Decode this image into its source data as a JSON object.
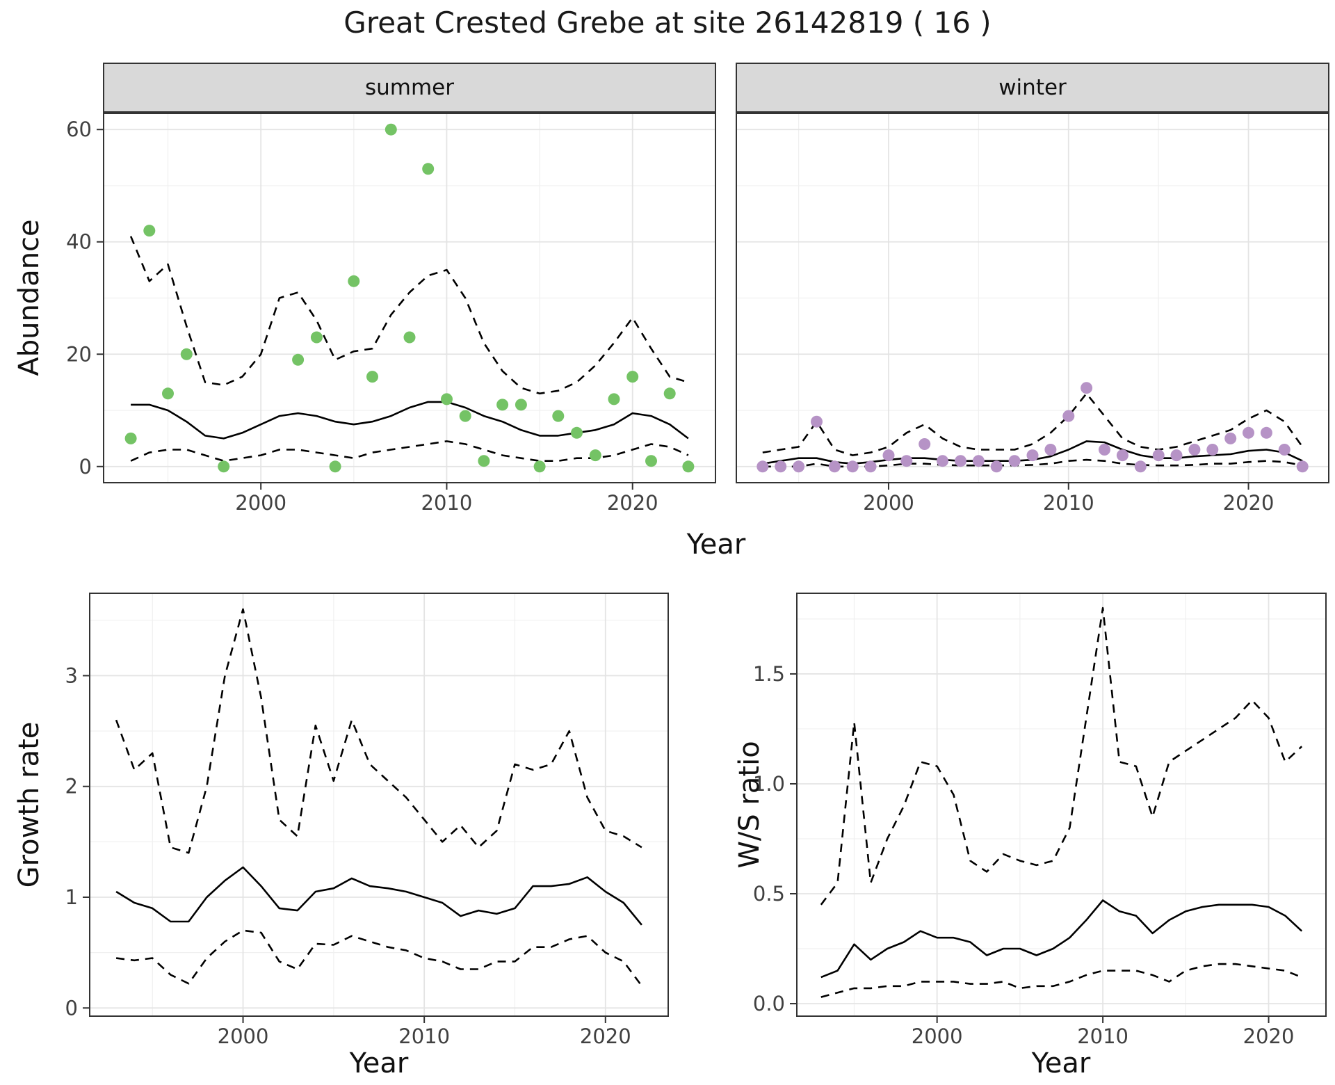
{
  "title": "Great Crested Grebe at site 26142819 ( 16 )",
  "axes": {
    "abundance_label": "Abundance",
    "year_label": "Year",
    "growth_label": "Growth rate",
    "ws_label": "W/S ratio"
  },
  "colors": {
    "summer_point": "#74c365",
    "winter_point": "#b693c6",
    "line": "#000000",
    "grid_major": "#e4e4e4",
    "grid_minor": "#f0f0f0",
    "strip_bg": "#d9d9d9",
    "panel_border": "#333333",
    "tick_text": "#404040"
  },
  "chart_data": [
    {
      "key": "summer-abundance",
      "type": "scatter",
      "facet_label": "summer",
      "xlabel": "Year",
      "ylabel": "Abundance",
      "xlim": [
        1991.5,
        2024.5
      ],
      "ylim": [
        -3,
        63
      ],
      "xticks": [
        2000,
        2010,
        2020
      ],
      "xtick_labels": [
        "2000",
        "2010",
        "2020"
      ],
      "xticks_minor": [
        1995,
        2005,
        2015
      ],
      "yticks": [
        0,
        20,
        40,
        60
      ],
      "ytick_labels": [
        "0",
        "20",
        "40",
        "60"
      ],
      "yticks_minor": [
        10,
        30,
        50
      ],
      "x": [
        1993,
        1994,
        1995,
        1996,
        1997,
        1998,
        1999,
        2000,
        2001,
        2002,
        2003,
        2004,
        2005,
        2006,
        2007,
        2008,
        2009,
        2010,
        2011,
        2012,
        2013,
        2014,
        2015,
        2016,
        2017,
        2018,
        2019,
        2020,
        2021,
        2022,
        2023
      ],
      "lines": [
        {
          "name": "upper-ci",
          "style": "dashed",
          "y": [
            41,
            33,
            36,
            25,
            15,
            14.5,
            16,
            20,
            30,
            31,
            26,
            19,
            20.5,
            21,
            27,
            31,
            34,
            35,
            30,
            22,
            17,
            14,
            13,
            13.5,
            15,
            18,
            22,
            26.5,
            21,
            16,
            15
          ]
        },
        {
          "name": "fit",
          "style": "solid",
          "y": [
            11,
            11,
            10,
            8,
            5.5,
            5,
            6,
            7.5,
            9,
            9.5,
            9,
            8,
            7.5,
            8,
            9,
            10.5,
            11.5,
            11.5,
            10.5,
            9,
            8,
            6.5,
            5.5,
            5.5,
            6,
            6.5,
            7.5,
            9.5,
            9,
            7.5,
            5
          ]
        },
        {
          "name": "lower-ci",
          "style": "dashed",
          "y": [
            1,
            2.5,
            3,
            3,
            2,
            1,
            1.5,
            2,
            3,
            3,
            2.5,
            2,
            1.5,
            2.5,
            3,
            3.5,
            4,
            4.5,
            4,
            3,
            2,
            1.5,
            1,
            1,
            1.5,
            1.5,
            2,
            3,
            4,
            3.5,
            2
          ]
        }
      ],
      "points": {
        "color": "#74c365",
        "x": [
          1993,
          1994,
          1995,
          1996,
          1998,
          2002,
          2003,
          2004,
          2005,
          2006,
          2007,
          2008,
          2009,
          2010,
          2011,
          2012,
          2013,
          2014,
          2015,
          2016,
          2017,
          2018,
          2019,
          2020,
          2021,
          2022,
          2023
        ],
        "y": [
          5,
          42,
          13,
          20,
          0,
          19,
          23,
          0,
          33,
          16,
          60,
          23,
          53,
          12,
          9,
          1,
          11,
          11,
          0,
          9,
          6,
          2,
          12,
          16,
          1,
          13,
          0
        ]
      }
    },
    {
      "key": "winter-abundance",
      "type": "scatter",
      "facet_label": "winter",
      "xlabel": "Year",
      "ylabel": "Abundance",
      "xlim": [
        1991.5,
        2024.5
      ],
      "ylim": [
        -3,
        63
      ],
      "xticks": [
        2000,
        2010,
        2020
      ],
      "xtick_labels": [
        "2000",
        "2010",
        "2020"
      ],
      "xticks_minor": [
        1995,
        2005,
        2015
      ],
      "yticks": [
        0,
        20,
        40,
        60
      ],
      "ytick_labels": null,
      "yticks_minor": [
        10,
        30,
        50
      ],
      "x": [
        1993,
        1994,
        1995,
        1996,
        1997,
        1998,
        1999,
        2000,
        2001,
        2002,
        2003,
        2004,
        2005,
        2006,
        2007,
        2008,
        2009,
        2010,
        2011,
        2012,
        2013,
        2014,
        2015,
        2016,
        2017,
        2018,
        2019,
        2020,
        2021,
        2022,
        2023
      ],
      "lines": [
        {
          "name": "upper-ci",
          "style": "dashed",
          "y": [
            2.5,
            3,
            3.5,
            8,
            3,
            2,
            2.5,
            3.5,
            6,
            7.5,
            5,
            3.5,
            3,
            3,
            3,
            4,
            6,
            9,
            13,
            9,
            5,
            3.5,
            3,
            3.5,
            4.5,
            5.5,
            6.5,
            8.5,
            10,
            8,
            3.5
          ]
        },
        {
          "name": "fit",
          "style": "solid",
          "y": [
            0.5,
            1,
            1.5,
            1.5,
            0.8,
            0.5,
            0.8,
            1.2,
            1.5,
            1.5,
            1.2,
            1,
            1,
            1,
            1,
            1.2,
            1.8,
            3,
            4.5,
            4.3,
            3,
            2,
            1.5,
            1.5,
            1.8,
            2,
            2.2,
            2.8,
            3,
            2.5,
            1
          ]
        },
        {
          "name": "lower-ci",
          "style": "dashed",
          "y": [
            0,
            0,
            0,
            0.5,
            0,
            0,
            0,
            0.2,
            0.5,
            0.5,
            0.3,
            0.2,
            0.2,
            0.2,
            0.2,
            0.3,
            0.5,
            1,
            1.2,
            1,
            0.5,
            0.3,
            0.2,
            0.2,
            0.3,
            0.5,
            0.5,
            0.8,
            1,
            0.8,
            0.2
          ]
        }
      ],
      "points": {
        "color": "#b693c6",
        "x": [
          1993,
          1994,
          1995,
          1996,
          1997,
          1998,
          1999,
          2000,
          2001,
          2002,
          2003,
          2004,
          2005,
          2006,
          2007,
          2008,
          2009,
          2010,
          2011,
          2012,
          2013,
          2014,
          2015,
          2016,
          2017,
          2018,
          2019,
          2020,
          2021,
          2022,
          2023
        ],
        "y": [
          0,
          0,
          0,
          8,
          0,
          0,
          0,
          2,
          1,
          4,
          1,
          1,
          1,
          0,
          1,
          2,
          3,
          9,
          14,
          3,
          2,
          0,
          2,
          2,
          3,
          3,
          5,
          6,
          6,
          3,
          0
        ]
      }
    },
    {
      "key": "growth-rate",
      "type": "line",
      "facet_label": null,
      "xlabel": "Year",
      "ylabel": "Growth rate",
      "xlim": [
        1991.5,
        2023.5
      ],
      "ylim": [
        -0.08,
        3.75
      ],
      "xticks": [
        2000,
        2010,
        2020
      ],
      "xtick_labels": [
        "2000",
        "2010",
        "2020"
      ],
      "xticks_minor": [
        1995,
        2005,
        2015
      ],
      "yticks": [
        0,
        1,
        2,
        3
      ],
      "ytick_labels": [
        "0",
        "1",
        "2",
        "3"
      ],
      "yticks_minor": [
        0.5,
        1.5,
        2.5,
        3.5
      ],
      "x": [
        1993,
        1994,
        1995,
        1996,
        1997,
        1998,
        1999,
        2000,
        2001,
        2002,
        2003,
        2004,
        2005,
        2006,
        2007,
        2008,
        2009,
        2010,
        2011,
        2012,
        2013,
        2014,
        2015,
        2016,
        2017,
        2018,
        2019,
        2020,
        2021,
        2022
      ],
      "lines": [
        {
          "name": "upper-ci",
          "style": "dashed",
          "y": [
            2.6,
            2.15,
            2.3,
            1.45,
            1.4,
            2.0,
            3.0,
            3.6,
            2.8,
            1.7,
            1.55,
            2.55,
            2.05,
            2.6,
            2.2,
            2.05,
            1.9,
            1.7,
            1.5,
            1.65,
            1.45,
            1.6,
            2.2,
            2.15,
            2.2,
            2.5,
            1.9,
            1.6,
            1.55,
            1.45
          ]
        },
        {
          "name": "fit",
          "style": "solid",
          "y": [
            1.05,
            0.95,
            0.9,
            0.78,
            0.78,
            1.0,
            1.15,
            1.27,
            1.1,
            0.9,
            0.88,
            1.05,
            1.08,
            1.17,
            1.1,
            1.08,
            1.05,
            1.0,
            0.95,
            0.83,
            0.88,
            0.85,
            0.9,
            1.1,
            1.1,
            1.12,
            1.18,
            1.05,
            0.95,
            0.75
          ]
        },
        {
          "name": "lower-ci",
          "style": "dashed",
          "y": [
            0.45,
            0.43,
            0.45,
            0.3,
            0.22,
            0.45,
            0.6,
            0.7,
            0.68,
            0.42,
            0.35,
            0.58,
            0.57,
            0.65,
            0.6,
            0.55,
            0.52,
            0.45,
            0.42,
            0.35,
            0.35,
            0.42,
            0.42,
            0.55,
            0.55,
            0.62,
            0.65,
            0.5,
            0.42,
            0.2
          ]
        }
      ],
      "points": null
    },
    {
      "key": "ws-ratio",
      "type": "line",
      "facet_label": null,
      "xlabel": "Year",
      "ylabel": "W/S ratio",
      "xlim": [
        1991.5,
        2023.5
      ],
      "ylim": [
        -0.06,
        1.87
      ],
      "xticks": [
        2000,
        2010,
        2020
      ],
      "xtick_labels": [
        "2000",
        "2010",
        "2020"
      ],
      "xticks_minor": [
        1995,
        2005,
        2015
      ],
      "yticks": [
        0,
        0.5,
        1.0,
        1.5
      ],
      "ytick_labels": [
        "0.0",
        "0.5",
        "1.0",
        "1.5"
      ],
      "yticks_minor": [
        0.25,
        0.75,
        1.25,
        1.75
      ],
      "x": [
        1993,
        1994,
        1995,
        1996,
        1997,
        1998,
        1999,
        2000,
        2001,
        2002,
        2003,
        2004,
        2005,
        2006,
        2007,
        2008,
        2009,
        2010,
        2011,
        2012,
        2013,
        2014,
        2015,
        2016,
        2017,
        2018,
        2019,
        2020,
        2021,
        2022
      ],
      "lines": [
        {
          "name": "upper-ci",
          "style": "dashed",
          "y": [
            0.45,
            0.55,
            1.28,
            0.55,
            0.75,
            0.9,
            1.1,
            1.08,
            0.95,
            0.65,
            0.6,
            0.68,
            0.65,
            0.63,
            0.65,
            0.8,
            1.3,
            1.8,
            1.1,
            1.08,
            0.85,
            1.1,
            1.15,
            1.2,
            1.25,
            1.3,
            1.38,
            1.3,
            1.1,
            1.17
          ]
        },
        {
          "name": "fit",
          "style": "solid",
          "y": [
            0.12,
            0.15,
            0.27,
            0.2,
            0.25,
            0.28,
            0.33,
            0.3,
            0.3,
            0.28,
            0.22,
            0.25,
            0.25,
            0.22,
            0.25,
            0.3,
            0.38,
            0.47,
            0.42,
            0.4,
            0.32,
            0.38,
            0.42,
            0.44,
            0.45,
            0.45,
            0.45,
            0.44,
            0.4,
            0.33
          ]
        },
        {
          "name": "lower-ci",
          "style": "dashed",
          "y": [
            0.03,
            0.05,
            0.07,
            0.07,
            0.08,
            0.08,
            0.1,
            0.1,
            0.1,
            0.09,
            0.09,
            0.1,
            0.07,
            0.08,
            0.08,
            0.1,
            0.13,
            0.15,
            0.15,
            0.15,
            0.13,
            0.1,
            0.15,
            0.17,
            0.18,
            0.18,
            0.17,
            0.16,
            0.15,
            0.12
          ]
        }
      ],
      "points": null
    }
  ]
}
